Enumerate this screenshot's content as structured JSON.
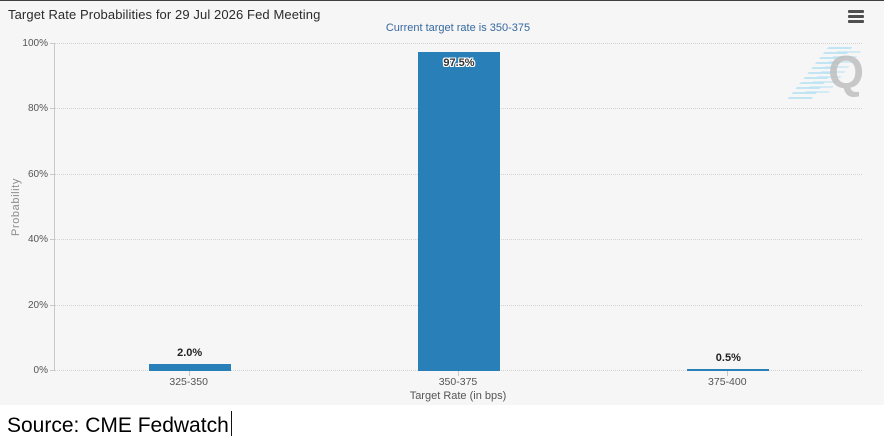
{
  "header": {
    "title": "Target Rate Probabilities for 29 Jul 2026 Fed Meeting",
    "subtitle": "Current target rate is 350-375"
  },
  "watermark": {
    "letter": "Q"
  },
  "chart_data": {
    "type": "bar",
    "title": "Target Rate Probabilities for 29 Jul 2026 Fed Meeting",
    "subtitle": "Current target rate is 350-375",
    "categories": [
      "325-350",
      "350-375",
      "375-400"
    ],
    "values": [
      2.0,
      97.5,
      0.5
    ],
    "value_labels": [
      "2.0%",
      "97.5%",
      "0.5%"
    ],
    "xlabel": "Target Rate (in bps)",
    "ylabel": "Probability",
    "ylim": [
      0,
      100
    ],
    "yticks": [
      0,
      20,
      40,
      60,
      80,
      100
    ],
    "ytick_labels": [
      "0%",
      "20%",
      "40%",
      "60%",
      "80%",
      "100%"
    ],
    "legend": "none",
    "grid": "horizontal-dotted",
    "bar_color": "#2980b8"
  },
  "footer": {
    "source": "Source: CME Fedwatch"
  },
  "colors": {
    "chart_bg": "#f6f6f6",
    "bar": "#2980b8",
    "subtitle_text": "#36699e",
    "gridline": "#d2d2d2",
    "axis_line": "#c9c9c9",
    "tick_text": "#555555",
    "title_text": "#2b2b2b",
    "watermark_q": "#bfbfbf",
    "watermark_dash": "#b9e2f4"
  }
}
